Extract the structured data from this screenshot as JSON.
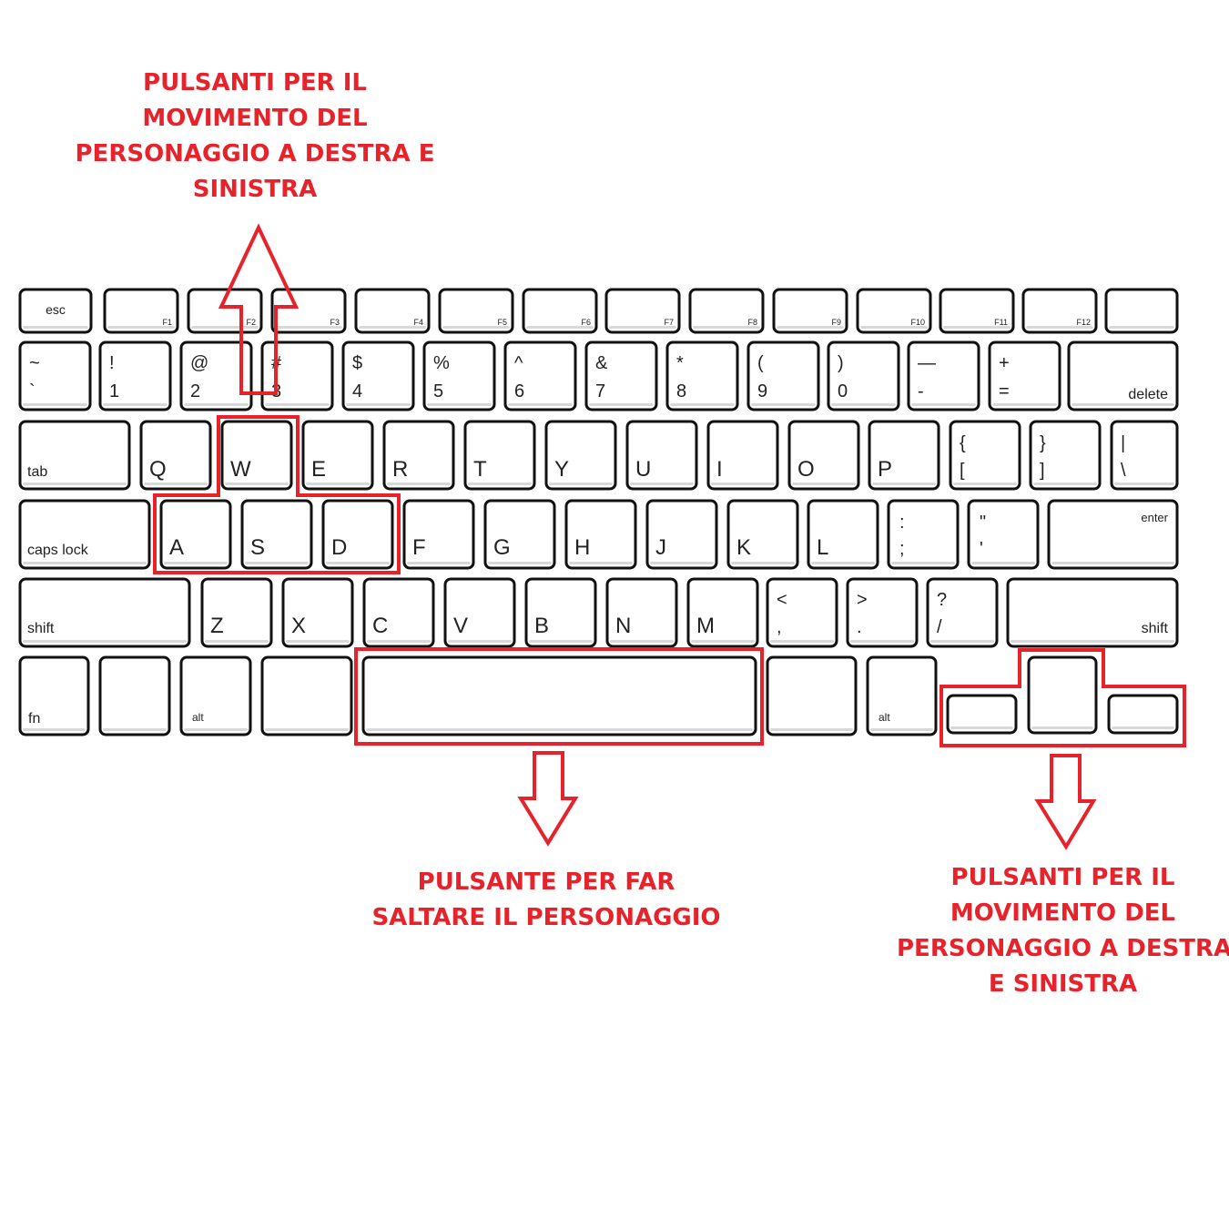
{
  "colors": {
    "accent": "#e8222a",
    "key_stroke": "#111111",
    "key_fill": "#ffffff"
  },
  "annotations": {
    "top": [
      "PULSANTI PER IL",
      "MOVIMENTO DEL",
      "PERSONAGGIO A DESTRA E",
      "SINISTRA"
    ],
    "middle": [
      "PULSANTE PER FAR",
      "SALTARE IL PERSONAGGIO"
    ],
    "right": [
      "PULSANTI PER IL",
      "MOVIMENTO DEL",
      "PERSONAGGIO A DESTRA",
      "E SINISTRA"
    ]
  },
  "keyboard": {
    "function_row": [
      "esc",
      "F1",
      "F2",
      "F3",
      "F4",
      "F5",
      "F6",
      "F7",
      "F8",
      "F9",
      "F10",
      "F11",
      "F12",
      ""
    ],
    "number_row": [
      {
        "top": "~",
        "bottom": "`"
      },
      {
        "top": "!",
        "bottom": "1"
      },
      {
        "top": "@",
        "bottom": "2"
      },
      {
        "top": "#",
        "bottom": "3"
      },
      {
        "top": "$",
        "bottom": "4"
      },
      {
        "top": "%",
        "bottom": "5"
      },
      {
        "top": "^",
        "bottom": "6"
      },
      {
        "top": "&",
        "bottom": "7"
      },
      {
        "top": "*",
        "bottom": "8"
      },
      {
        "top": "(",
        "bottom": "9"
      },
      {
        "top": ")",
        "bottom": "0"
      },
      {
        "top": "—",
        "bottom": "-"
      },
      {
        "top": "+",
        "bottom": "="
      },
      {
        "label": "delete"
      }
    ],
    "qwerty_row": [
      "tab",
      "Q",
      "W",
      "E",
      "R",
      "T",
      "Y",
      "U",
      "I",
      "O",
      "P",
      {
        "top": "{",
        "bottom": "["
      },
      {
        "top": "}",
        "bottom": "]"
      },
      {
        "top": "|",
        "bottom": "\\"
      }
    ],
    "home_row": [
      "caps lock",
      "A",
      "S",
      "D",
      "F",
      "G",
      "H",
      "J",
      "K",
      "L",
      {
        "top": ":",
        "bottom": ";"
      },
      {
        "top": "\"",
        "bottom": "'"
      },
      "enter"
    ],
    "shift_row": [
      "shift",
      "Z",
      "X",
      "C",
      "V",
      "B",
      "N",
      "M",
      {
        "top": "<",
        "bottom": ","
      },
      {
        "top": ">",
        "bottom": "."
      },
      {
        "top": "?",
        "bottom": "/"
      },
      "shift"
    ],
    "bottom_row": [
      "fn",
      "",
      "alt",
      "",
      "",
      "",
      "alt"
    ],
    "arrows": [
      "",
      "",
      ""
    ]
  }
}
